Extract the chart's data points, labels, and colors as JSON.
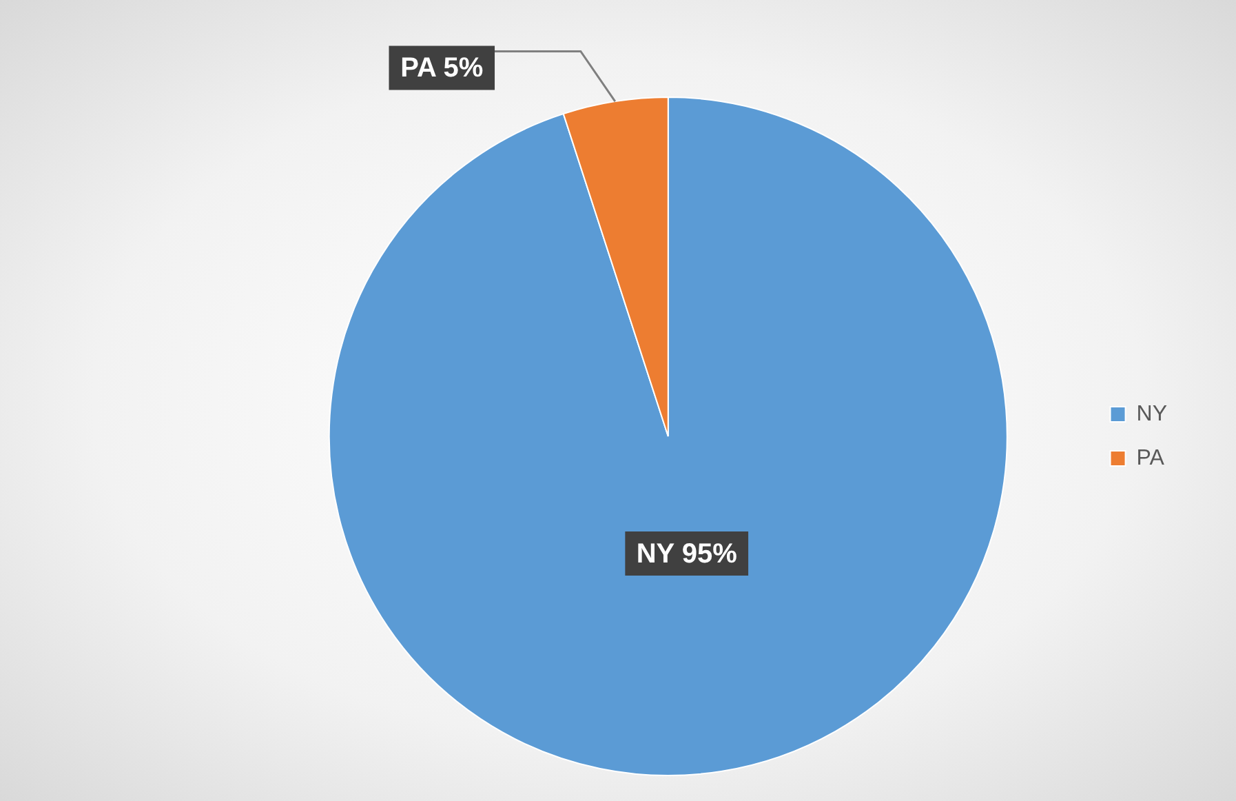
{
  "chart_data": {
    "type": "pie",
    "categories": [
      "NY",
      "PA"
    ],
    "values": [
      95,
      5
    ],
    "colors": [
      "#5b9bd5",
      "#ed7d31"
    ],
    "value_labels": [
      "NY 95%",
      "PA 5%"
    ],
    "legend": "right"
  }
}
